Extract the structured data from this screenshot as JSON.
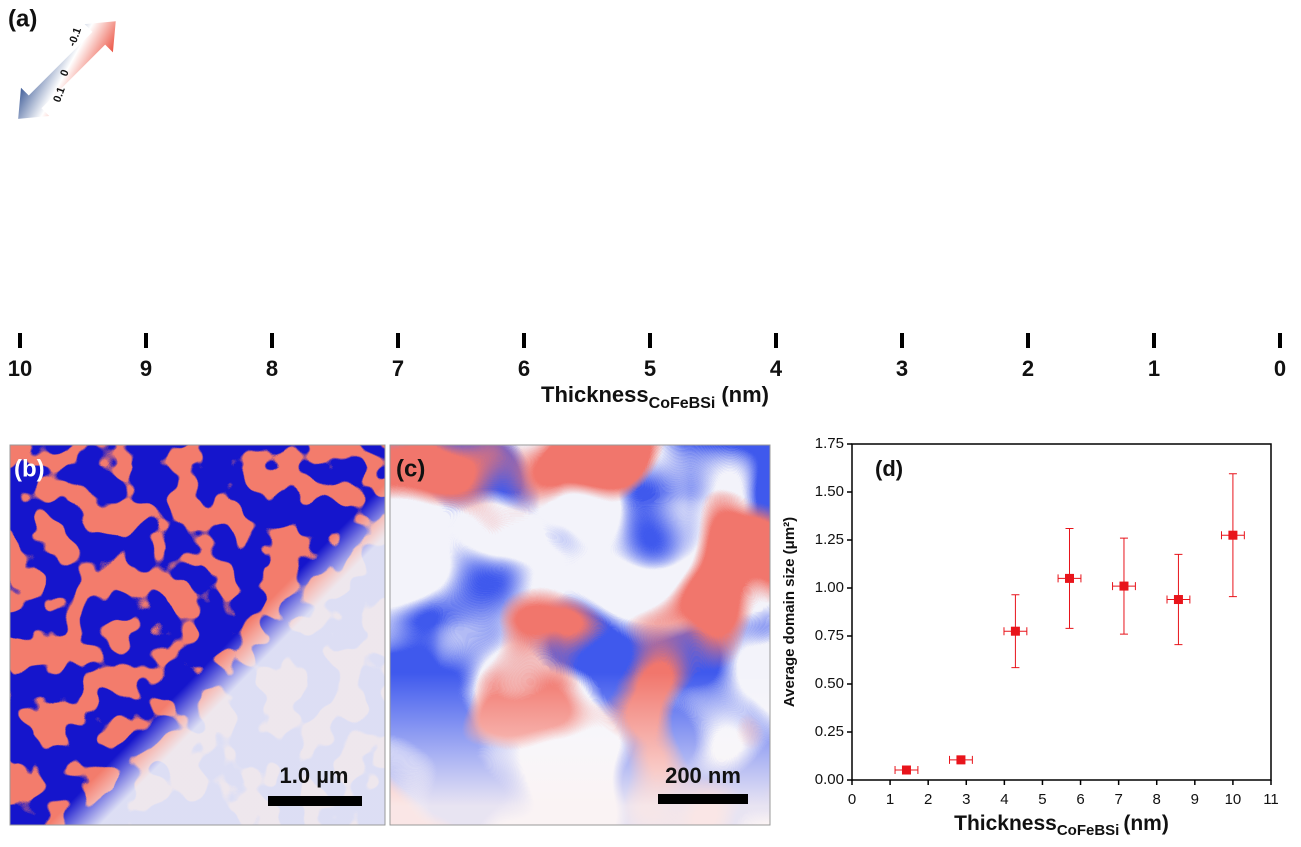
{
  "panel_a": {
    "label": "(a)",
    "colorbar_ticks": [
      -0.1,
      0,
      0.1
    ],
    "xlim": [
      10,
      0
    ],
    "xticks": [
      10,
      9,
      8,
      7,
      6,
      5,
      4,
      3,
      2,
      1,
      0
    ],
    "xlabel": {
      "main": "Thickness",
      "sub": "CoFeBSi",
      "unit": "(nm)"
    }
  },
  "panel_b": {
    "label": "(b)",
    "scale_bar": "1.0 µm"
  },
  "panel_c": {
    "label": "(c)",
    "scale_bar": "200 nm"
  },
  "chart_data": {
    "type": "scatter",
    "label": "(d)",
    "color": "#e8141b",
    "x": [
      1.43,
      2.86,
      4.29,
      5.71,
      7.14,
      8.57,
      10.0
    ],
    "values": [
      0.052,
      0.105,
      0.775,
      1.05,
      1.01,
      0.94,
      1.275
    ],
    "xerr": [
      0.3,
      0.3,
      0.3,
      0.3,
      0.3,
      0.3,
      0.3
    ],
    "yerr": [
      0.015,
      0.02,
      0.19,
      0.26,
      0.25,
      0.235,
      0.32
    ],
    "xlim": [
      0,
      11
    ],
    "xticks": [
      0,
      1,
      2,
      3,
      4,
      5,
      6,
      7,
      8,
      9,
      10,
      11
    ],
    "ylim": [
      0,
      1.75
    ],
    "yticks": [
      {
        "value": 0,
        "label": "0.00"
      },
      {
        "value": 0.25,
        "label": "0.25"
      },
      {
        "value": 0.5,
        "label": "0.50"
      },
      {
        "value": 0.75,
        "label": "0.75"
      },
      {
        "value": 1,
        "label": "1.00"
      },
      {
        "value": 1.25,
        "label": "1.25"
      },
      {
        "value": 1.5,
        "label": "1.50"
      },
      {
        "value": 1.75,
        "label": "1.75"
      }
    ],
    "xlabel": {
      "main": "Thickness",
      "sub": "CoFeBSi",
      "unit": "(nm)"
    },
    "ylabel": "Average domain size (μm²)"
  }
}
